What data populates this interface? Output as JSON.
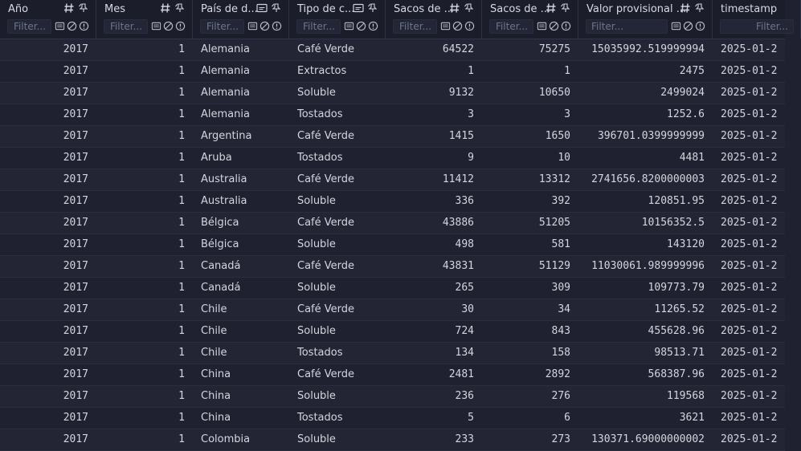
{
  "columns": [
    {
      "title": "Año",
      "filter_placeholder": "Filter...",
      "type": "number"
    },
    {
      "title": "Mes",
      "filter_placeholder": "Filter...",
      "type": "number"
    },
    {
      "title": "País de d...",
      "filter_placeholder": "Filter...",
      "type": "text"
    },
    {
      "title": "Tipo de c...",
      "filter_placeholder": "Filter...",
      "type": "text"
    },
    {
      "title": "Sacos de ...",
      "filter_placeholder": "Filter...",
      "type": "number"
    },
    {
      "title": "Sacos de ...",
      "filter_placeholder": "Filter...",
      "type": "number"
    },
    {
      "title": "Valor provisional ...",
      "filter_placeholder": "Filter...",
      "type": "number"
    },
    {
      "title": "timestamp",
      "filter_placeholder": "Filter...",
      "type": "datetime"
    }
  ],
  "rows": [
    [
      "2017",
      "1",
      "Alemania",
      "Café Verde",
      "64522",
      "75275",
      "15035992.519999994",
      "2025-01-2"
    ],
    [
      "2017",
      "1",
      "Alemania",
      "Extractos",
      "1",
      "1",
      "2475",
      "2025-01-2"
    ],
    [
      "2017",
      "1",
      "Alemania",
      "Soluble",
      "9132",
      "10650",
      "2499024",
      "2025-01-2"
    ],
    [
      "2017",
      "1",
      "Alemania",
      "Tostados",
      "3",
      "3",
      "1252.6",
      "2025-01-2"
    ],
    [
      "2017",
      "1",
      "Argentina",
      "Café Verde",
      "1415",
      "1650",
      "396701.0399999999",
      "2025-01-2"
    ],
    [
      "2017",
      "1",
      "Aruba",
      "Tostados",
      "9",
      "10",
      "4481",
      "2025-01-2"
    ],
    [
      "2017",
      "1",
      "Australia",
      "Café Verde",
      "11412",
      "13312",
      "2741656.8200000003",
      "2025-01-2"
    ],
    [
      "2017",
      "1",
      "Australia",
      "Soluble",
      "336",
      "392",
      "120851.95",
      "2025-01-2"
    ],
    [
      "2017",
      "1",
      "Bélgica",
      "Café Verde",
      "43886",
      "51205",
      "10156352.5",
      "2025-01-2"
    ],
    [
      "2017",
      "1",
      "Bélgica",
      "Soluble",
      "498",
      "581",
      "143120",
      "2025-01-2"
    ],
    [
      "2017",
      "1",
      "Canadá",
      "Café Verde",
      "43831",
      "51129",
      "11030061.989999996",
      "2025-01-2"
    ],
    [
      "2017",
      "1",
      "Canadá",
      "Soluble",
      "265",
      "309",
      "109773.79",
      "2025-01-2"
    ],
    [
      "2017",
      "1",
      "Chile",
      "Café Verde",
      "30",
      "34",
      "11265.52",
      "2025-01-2"
    ],
    [
      "2017",
      "1",
      "Chile",
      "Soluble",
      "724",
      "843",
      "455628.96",
      "2025-01-2"
    ],
    [
      "2017",
      "1",
      "Chile",
      "Tostados",
      "134",
      "158",
      "98513.71",
      "2025-01-2"
    ],
    [
      "2017",
      "1",
      "China",
      "Café Verde",
      "2481",
      "2892",
      "568387.96",
      "2025-01-2"
    ],
    [
      "2017",
      "1",
      "China",
      "Soluble",
      "236",
      "276",
      "119568",
      "2025-01-2"
    ],
    [
      "2017",
      "1",
      "China",
      "Tostados",
      "5",
      "6",
      "3621",
      "2025-01-2"
    ],
    [
      "2017",
      "1",
      "Colombia",
      "Soluble",
      "233",
      "273",
      "130371.69000000002",
      "2025-01-2"
    ]
  ],
  "colors": {
    "background": "#1f2130",
    "row_alt": "#232534",
    "header": "#1b1d2a",
    "text": "#d3d6de"
  }
}
